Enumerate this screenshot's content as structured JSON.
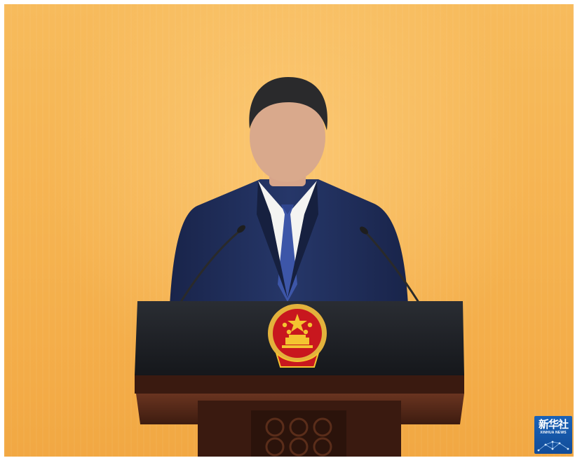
{
  "image": {
    "background": "#f5b24f",
    "podium_color": "#1c1f25",
    "podium_wood": "#5a2a1a",
    "suit_color": "#1f2d5a",
    "tie_color": "#3d56a8",
    "emblem_red": "#c8171e",
    "emblem_gold": "#f4c430"
  },
  "logo": {
    "name": "xinhua-logo",
    "text_cn": "新华社",
    "text_en": "XINHUA NEWS",
    "color": "#1a62b8"
  }
}
